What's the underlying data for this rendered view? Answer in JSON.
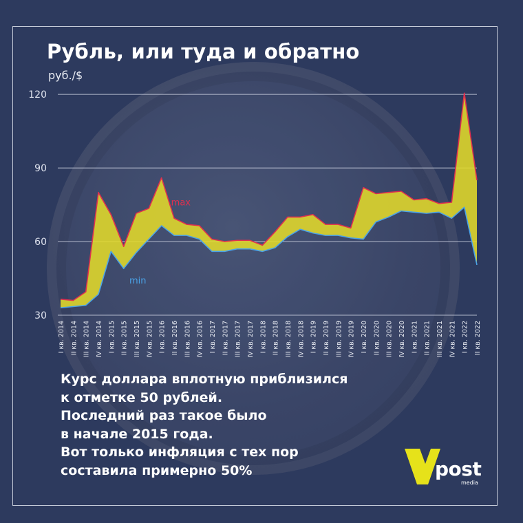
{
  "header": {
    "title": "Рубль, или туда и обратно",
    "unit": "руб./$"
  },
  "caption": {
    "lines": [
      "Курс доллара вплотную приблизился",
      "к отметке 50 рублей.",
      "Последний раз такое было",
      "в начале 2015 года.",
      "Вот только инфляция с тех пор",
      "составила примерно 50%"
    ]
  },
  "logo": {
    "word": "post",
    "sub": "media",
    "mark_color": "#e6e21a"
  },
  "colors": {
    "background": "#2d3a5e",
    "band_fill": "#e3d92a",
    "max_line": "#e0304e",
    "min_line": "#4aa3e8",
    "grid": "#c9cede",
    "text": "#ffffff"
  },
  "chart_data": {
    "type": "area",
    "title": "Рубль, или туда и обратно",
    "ylabel": "руб./$",
    "ylim": [
      30,
      122
    ],
    "yticks": [
      30,
      60,
      90,
      120
    ],
    "grid": true,
    "x": [
      "I кв. 2014",
      "II кв. 2014",
      "III кв. 2014",
      "IV кв. 2014",
      "I кв. 2015",
      "II кв. 2015",
      "III кв. 2015",
      "IV кв. 2015",
      "I кв. 2016",
      "II кв. 2016",
      "III кв. 2016",
      "IV кв. 2016",
      "I кв. 2017",
      "II кв. 2017",
      "III кв. 2017",
      "IV кв. 2017",
      "I кв. 2018",
      "II кв. 2018",
      "III кв. 2018",
      "IV кв. 2018",
      "I кв. 2019",
      "II кв. 2019",
      "III кв. 2019",
      "IV кв. 2019",
      "I кв. 2020",
      "II кв. 2020",
      "III кв. 2020",
      "IV кв. 2020",
      "I кв. 2021",
      "II кв. 2021",
      "III кв. 2021",
      "IV кв. 2021",
      "I кв. 2022",
      "II кв. 2022"
    ],
    "series": [
      {
        "name": "max",
        "color": "#e0304e",
        "values": [
          36.5,
          36.0,
          39.5,
          80.0,
          71.0,
          58.0,
          71.5,
          73.5,
          86.0,
          69.5,
          67.0,
          66.5,
          61.0,
          60.0,
          60.5,
          60.5,
          58.5,
          64.0,
          70.0,
          70.0,
          71.0,
          67.0,
          67.0,
          65.5,
          82.0,
          79.5,
          80.0,
          80.5,
          77.0,
          77.5,
          75.5,
          76.0,
          120.5,
          85.0
        ]
      },
      {
        "name": "min",
        "color": "#4aa3e8",
        "values": [
          33.0,
          33.5,
          34.0,
          38.5,
          56.0,
          49.0,
          55.5,
          61.0,
          66.5,
          62.5,
          62.5,
          61.0,
          56.0,
          56.0,
          57.0,
          57.0,
          56.0,
          57.5,
          62.0,
          65.0,
          63.5,
          62.5,
          62.5,
          61.5,
          61.0,
          68.0,
          70.0,
          72.5,
          72.0,
          71.5,
          72.0,
          69.5,
          74.0,
          50.5
        ]
      }
    ]
  }
}
